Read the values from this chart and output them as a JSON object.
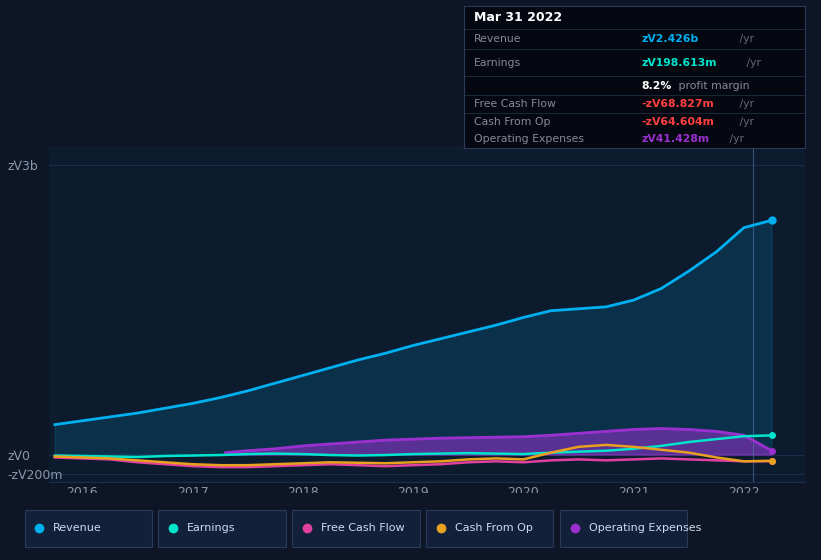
{
  "background_color": "#0d1526",
  "plot_bg_color": "#0d1b2e",
  "title": "earnings-and-revenue-history",
  "xlim": [
    2015.7,
    2022.55
  ],
  "ylim": [
    -280000000,
    3200000000
  ],
  "yticks": [
    -200000000,
    0,
    3000000000
  ],
  "ytick_labels": [
    "-zᐯ200m",
    "zᐯ0",
    "zᐯ3b"
  ],
  "xtick_years": [
    2016,
    2017,
    2018,
    2019,
    2020,
    2021,
    2022
  ],
  "revenue_x": [
    2015.75,
    2016.0,
    2016.25,
    2016.5,
    2016.75,
    2017.0,
    2017.25,
    2017.5,
    2017.75,
    2018.0,
    2018.25,
    2018.5,
    2018.75,
    2019.0,
    2019.25,
    2019.5,
    2019.75,
    2020.0,
    2020.25,
    2020.5,
    2020.75,
    2021.0,
    2021.25,
    2021.5,
    2021.75,
    2022.0,
    2022.25
  ],
  "revenue_y": [
    310000000,
    350000000,
    390000000,
    430000000,
    480000000,
    530000000,
    590000000,
    660000000,
    740000000,
    820000000,
    900000000,
    980000000,
    1050000000,
    1130000000,
    1200000000,
    1270000000,
    1340000000,
    1420000000,
    1490000000,
    1510000000,
    1530000000,
    1600000000,
    1720000000,
    1900000000,
    2100000000,
    2350000000,
    2426000000
  ],
  "earnings_x": [
    2015.75,
    2016.0,
    2016.25,
    2016.5,
    2016.75,
    2017.0,
    2017.25,
    2017.5,
    2017.75,
    2018.0,
    2018.25,
    2018.5,
    2018.75,
    2019.0,
    2019.25,
    2019.5,
    2019.75,
    2020.0,
    2020.25,
    2020.5,
    2020.75,
    2021.0,
    2021.25,
    2021.5,
    2021.75,
    2022.0,
    2022.25
  ],
  "earnings_y": [
    -10000000,
    -15000000,
    -20000000,
    -25000000,
    -15000000,
    -10000000,
    -5000000,
    5000000,
    10000000,
    5000000,
    -5000000,
    -10000000,
    -5000000,
    5000000,
    10000000,
    15000000,
    10000000,
    5000000,
    20000000,
    30000000,
    40000000,
    60000000,
    90000000,
    130000000,
    160000000,
    190000000,
    198613000
  ],
  "fcf_x": [
    2015.75,
    2016.0,
    2016.25,
    2016.5,
    2016.75,
    2017.0,
    2017.25,
    2017.5,
    2017.75,
    2018.0,
    2018.25,
    2018.5,
    2018.75,
    2019.0,
    2019.25,
    2019.5,
    2019.75,
    2020.0,
    2020.25,
    2020.5,
    2020.75,
    2021.0,
    2021.25,
    2021.5,
    2021.75,
    2022.0,
    2022.25
  ],
  "fcf_y": [
    -30000000,
    -40000000,
    -50000000,
    -80000000,
    -100000000,
    -120000000,
    -130000000,
    -130000000,
    -120000000,
    -110000000,
    -100000000,
    -110000000,
    -120000000,
    -110000000,
    -100000000,
    -80000000,
    -70000000,
    -80000000,
    -60000000,
    -50000000,
    -60000000,
    -50000000,
    -40000000,
    -50000000,
    -60000000,
    -70000000,
    -68827000
  ],
  "cashfromop_x": [
    2015.75,
    2016.0,
    2016.25,
    2016.5,
    2016.75,
    2017.0,
    2017.25,
    2017.5,
    2017.75,
    2018.0,
    2018.25,
    2018.5,
    2018.75,
    2019.0,
    2019.25,
    2019.5,
    2019.75,
    2020.0,
    2020.25,
    2020.5,
    2020.75,
    2021.0,
    2021.25,
    2021.5,
    2021.75,
    2022.0,
    2022.25
  ],
  "cashfromop_y": [
    -20000000,
    -30000000,
    -40000000,
    -60000000,
    -80000000,
    -100000000,
    -110000000,
    -110000000,
    -100000000,
    -90000000,
    -80000000,
    -85000000,
    -90000000,
    -80000000,
    -70000000,
    -50000000,
    -40000000,
    -50000000,
    20000000,
    80000000,
    100000000,
    80000000,
    50000000,
    20000000,
    -30000000,
    -70000000,
    -64604000
  ],
  "opex_x": [
    2017.3,
    2017.5,
    2017.75,
    2018.0,
    2018.25,
    2018.5,
    2018.75,
    2019.0,
    2019.25,
    2019.5,
    2019.75,
    2020.0,
    2020.25,
    2020.5,
    2020.75,
    2021.0,
    2021.25,
    2021.5,
    2021.75,
    2022.0,
    2022.25
  ],
  "opex_y": [
    20000000,
    40000000,
    60000000,
    90000000,
    110000000,
    130000000,
    150000000,
    160000000,
    170000000,
    175000000,
    180000000,
    185000000,
    200000000,
    220000000,
    240000000,
    260000000,
    270000000,
    260000000,
    240000000,
    200000000,
    41428000
  ],
  "revenue_color": "#00b0f0",
  "earnings_color": "#00e5cc",
  "fcf_color": "#e040a0",
  "cashfromop_color": "#e8a020",
  "opex_color": "#9b30d0",
  "grid_color": "#1e3050",
  "tick_color": "#8899aa",
  "vline_x": 2022.08,
  "tooltip_title": "Mar 31 2022",
  "tooltip_revenue_label": "Revenue",
  "tooltip_revenue_val": "zᐯ2.426b",
  "tooltip_earnings_label": "Earnings",
  "tooltip_earnings_val": "zᐯ198.613m",
  "tooltip_margin_pct": "8.2%",
  "tooltip_margin_text": " profit margin",
  "tooltip_fcf_label": "Free Cash Flow",
  "tooltip_fcf_val": "-zᐯ68.827m",
  "tooltip_cashop_label": "Cash From Op",
  "tooltip_cashop_val": "-zᐯ64.604m",
  "tooltip_opex_label": "Operating Expenses",
  "tooltip_opex_val": "zᐯ41.428m",
  "legend_items": [
    "Revenue",
    "Earnings",
    "Free Cash Flow",
    "Cash From Op",
    "Operating Expenses"
  ],
  "legend_colors": [
    "#00b0f0",
    "#00e5cc",
    "#e040a0",
    "#e8a020",
    "#9b30d0"
  ]
}
